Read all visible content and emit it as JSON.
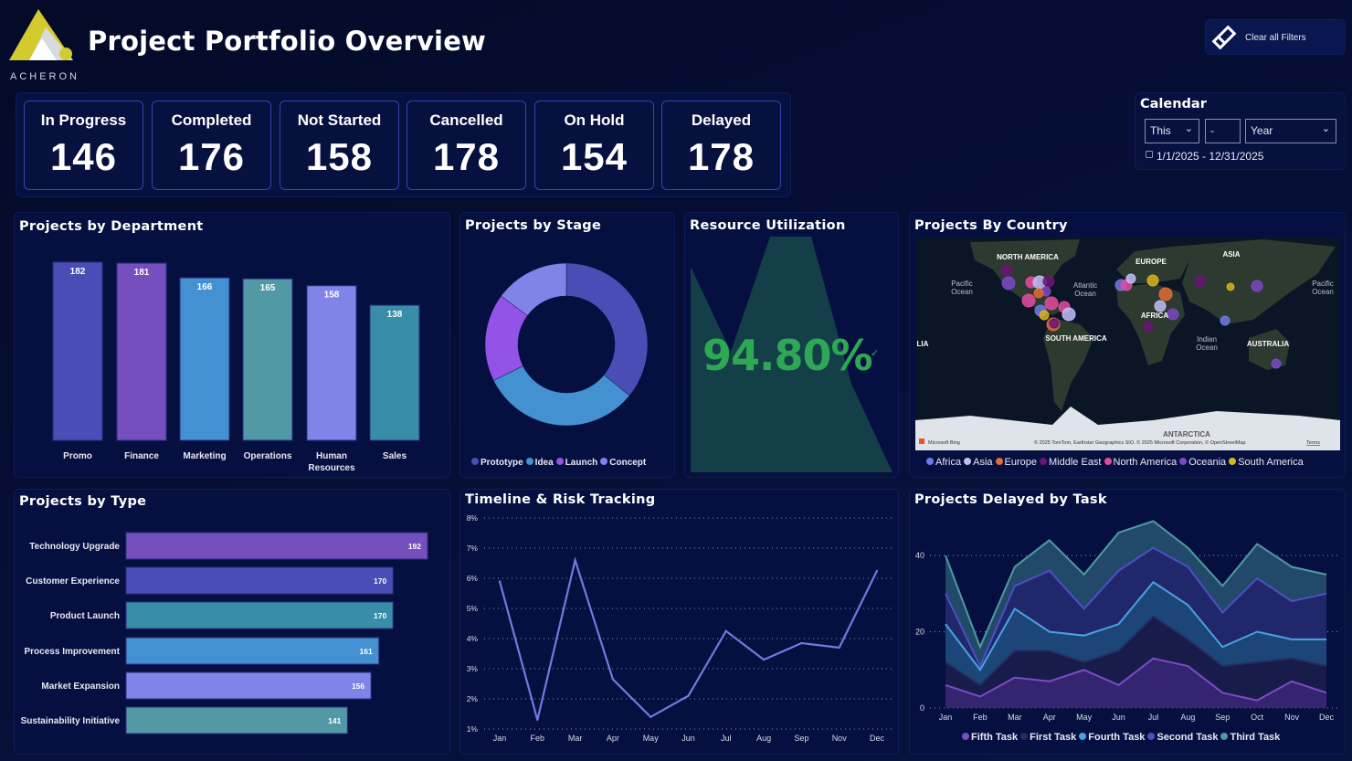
{
  "header": {
    "title": "Project Portfolio Overview",
    "logo_text": "ACHERON",
    "clear_filters": "Clear all Filters"
  },
  "kpis": [
    {
      "label": "In Progress",
      "value": "146"
    },
    {
      "label": "Completed",
      "value": "176"
    },
    {
      "label": "Not Started",
      "value": "158"
    },
    {
      "label": "Cancelled",
      "value": "178"
    },
    {
      "label": "On Hold",
      "value": "154"
    },
    {
      "label": "Delayed",
      "value": "178"
    }
  ],
  "calendar": {
    "title": "Calendar",
    "relative": "This",
    "count": "-",
    "unit": "Year",
    "range": "1/1/2025 - 12/31/2025"
  },
  "resource": {
    "title": "Resource Utilization",
    "value": "94.80%",
    "status_color": "#2ea855"
  },
  "map": {
    "title": "Projects By Country",
    "labels": {
      "na": "NORTH AMERICA",
      "eu": "EUROPE",
      "asia": "ASIA",
      "africa": "AFRICA",
      "sa": "SOUTH AMERICA",
      "aus": "AUSTRALIA",
      "ant": "ANTARCTICA",
      "pac1": "Pacific",
      "pac1b": "Ocean",
      "atl": "Atlantic",
      "atlb": "Ocean",
      "ind": "Indian",
      "indb": "Ocean",
      "pac2": "Pacific",
      "pac2b": "Ocean",
      "lia": "LIA"
    },
    "attribution": "© 2025 TomTom, Earthstar Geographics SIO, © 2025 Microsoft Corporation, © OpenStreetMap",
    "terms": "Terms",
    "bing": "Microsoft Bing",
    "legend": [
      {
        "name": "Africa",
        "color": "#7178e6"
      },
      {
        "name": "Asia",
        "color": "#c2bdf5"
      },
      {
        "name": "Europe",
        "color": "#e06c36"
      },
      {
        "name": "Middle East",
        "color": "#6b1576"
      },
      {
        "name": "North America",
        "color": "#e44ba0"
      },
      {
        "name": "Oceania",
        "color": "#7c48c6"
      },
      {
        "name": "South America",
        "color": "#d9b41c"
      }
    ]
  },
  "chart_data": [
    {
      "id": "dept",
      "type": "bar",
      "title": "Projects by Department",
      "categories": [
        "Promo",
        "Finance",
        "Marketing",
        "Operations",
        "Human Resources",
        "Sales"
      ],
      "values": [
        182,
        181,
        166,
        165,
        158,
        138
      ],
      "colors": [
        "#4a4db5",
        "#764fbf",
        "#4391d1",
        "#5099a5",
        "#8083e8",
        "#388ea8"
      ]
    },
    {
      "id": "stage",
      "type": "pie",
      "title": "Projects by Stage",
      "categories": [
        "Prototype",
        "Idea",
        "Launch",
        "Concept"
      ],
      "values": [
        355,
        315,
        173,
        147
      ],
      "colors": [
        "#4a4db5",
        "#4391d1",
        "#9352e8",
        "#8083e8"
      ]
    },
    {
      "id": "type",
      "type": "bar",
      "orientation": "horizontal",
      "title": "Projects by Type",
      "categories": [
        "Technology Upgrade",
        "Customer Experience",
        "Product Launch",
        "Process Improvement",
        "Market Expansion",
        "Sustainability Initiative"
      ],
      "values": [
        192,
        170,
        170,
        161,
        156,
        141
      ],
      "colors": [
        "#764fbf",
        "#4a4db5",
        "#388ea8",
        "#4391d1",
        "#8083e8",
        "#5099a5"
      ]
    },
    {
      "id": "timeline",
      "type": "line",
      "title": "Timeline & Risk Tracking",
      "categories": [
        "Jan",
        "Feb",
        "Mar",
        "Apr",
        "May",
        "Jun",
        "Jul",
        "Aug",
        "Sep",
        "Nov",
        "Dec"
      ],
      "values": [
        5.9,
        1.3,
        6.6,
        2.65,
        1.4,
        2.1,
        4.25,
        3.3,
        3.85,
        3.7,
        6.25
      ],
      "yticks": [
        "1%",
        "2%",
        "3%",
        "4%",
        "5%",
        "6%",
        "7%",
        "8%"
      ],
      "ylim": [
        1,
        8
      ],
      "grid": true,
      "color": "#7479e0"
    },
    {
      "id": "delayed",
      "type": "area",
      "stacked": true,
      "title": "Projects Delayed by Task",
      "categories": [
        "Jan",
        "Feb",
        "Mar",
        "Apr",
        "May",
        "Jun",
        "Jul",
        "Aug",
        "Sep",
        "Oct",
        "Nov",
        "Dec"
      ],
      "yticks": [
        "0",
        "20",
        "40"
      ],
      "ylim": [
        0,
        50
      ],
      "grid": true,
      "legend_position": "bottom",
      "series": [
        {
          "name": "Fifth Task",
          "values": [
            6,
            3,
            8,
            7,
            10,
            6,
            13,
            11,
            4,
            2,
            7,
            4
          ],
          "color": "#7c4bc6",
          "fill": "#35246f"
        },
        {
          "name": "First Task",
          "values": [
            6,
            3,
            7,
            8,
            2,
            9,
            11,
            7,
            7,
            10,
            6,
            7
          ],
          "color": "#262b62",
          "fill": "#171c4a"
        },
        {
          "name": "Fourth Task",
          "values": [
            10,
            4,
            11,
            5,
            7,
            7,
            9,
            9,
            5,
            8,
            5,
            7
          ],
          "color": "#4aa2e2",
          "fill": "#1c4677"
        },
        {
          "name": "Second Task",
          "values": [
            8,
            1,
            6,
            16,
            7,
            14,
            9,
            10,
            9,
            14,
            10,
            12
          ],
          "color": "#4c4fc4",
          "fill": "#20276a"
        },
        {
          "name": "Third Task",
          "values": [
            10,
            5,
            5,
            8,
            9,
            10,
            7,
            5,
            7,
            9,
            9,
            5
          ],
          "color": "#4f9aa0",
          "fill": "#22496a"
        }
      ]
    }
  ]
}
